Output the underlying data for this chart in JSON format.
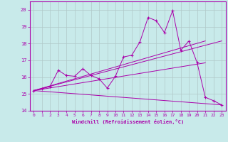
{
  "xlabel": "Windchill (Refroidissement éolien,°C)",
  "xlim": [
    -0.5,
    23.5
  ],
  "ylim": [
    14,
    20.5
  ],
  "yticks": [
    14,
    15,
    16,
    17,
    18,
    19,
    20
  ],
  "xticks": [
    0,
    1,
    2,
    3,
    4,
    5,
    6,
    7,
    8,
    9,
    10,
    11,
    12,
    13,
    14,
    15,
    16,
    17,
    18,
    19,
    20,
    21,
    22,
    23
  ],
  "bg_color": "#c8eaea",
  "line_color": "#aa00aa",
  "grid_color": "#b0c8c8",
  "series": {
    "main_line": [
      [
        0,
        15.2
      ],
      [
        1,
        15.3
      ],
      [
        2,
        15.45
      ],
      [
        3,
        16.4
      ],
      [
        4,
        16.1
      ],
      [
        5,
        16.05
      ],
      [
        6,
        16.5
      ],
      [
        7,
        16.1
      ],
      [
        8,
        15.9
      ],
      [
        9,
        15.35
      ],
      [
        10,
        16.05
      ],
      [
        11,
        17.2
      ],
      [
        12,
        17.3
      ],
      [
        13,
        18.1
      ],
      [
        14,
        19.55
      ],
      [
        15,
        19.35
      ],
      [
        16,
        18.65
      ],
      [
        17,
        19.95
      ],
      [
        18,
        17.6
      ],
      [
        19,
        18.15
      ],
      [
        20,
        16.85
      ],
      [
        21,
        14.8
      ],
      [
        22,
        14.6
      ],
      [
        23,
        14.35
      ]
    ],
    "line1": [
      [
        0,
        15.2
      ],
      [
        23,
        18.15
      ]
    ],
    "line2": [
      [
        0,
        15.2
      ],
      [
        21,
        18.15
      ]
    ],
    "line3": [
      [
        0,
        15.2
      ],
      [
        21,
        16.85
      ]
    ],
    "line4": [
      [
        0,
        15.2
      ],
      [
        23,
        14.35
      ]
    ]
  }
}
